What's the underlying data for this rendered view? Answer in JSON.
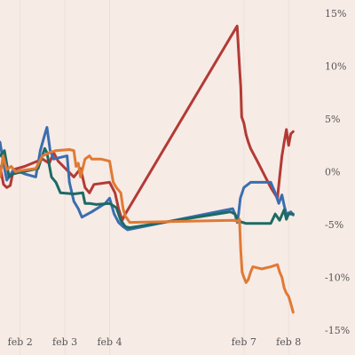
{
  "chart_data": {
    "type": "line",
    "title": "",
    "xlabel": "",
    "ylabel": "",
    "y_unit": "%",
    "ylim": [
      -15,
      15
    ],
    "x_axis": {
      "tick_labels": [
        "feb 2",
        "feb 3",
        "feb 4",
        "feb 7",
        "feb 8"
      ],
      "tick_days": [
        2,
        3,
        4,
        7,
        8
      ],
      "range_days": [
        1.55,
        8.65
      ]
    },
    "y_axis": {
      "ticks": [
        15,
        10,
        5,
        0,
        -5,
        -10,
        -15
      ],
      "tick_labels": [
        "15%",
        "10%",
        "5%",
        "0%",
        "-5%",
        "-10%",
        "-15%"
      ],
      "position": "right"
    },
    "grid": "vertical",
    "legend": "none",
    "series": [
      {
        "color": "#b33a34",
        "points": [
          [
            1.55,
            0.5
          ],
          [
            1.63,
            -1.2
          ],
          [
            1.7,
            -1.5
          ],
          [
            1.78,
            -1.3
          ],
          [
            1.85,
            0.2
          ],
          [
            2.1,
            0.5
          ],
          [
            2.5,
            1.2
          ],
          [
            2.65,
            0.8
          ],
          [
            2.75,
            1.8
          ],
          [
            2.85,
            1.0
          ],
          [
            3.2,
            -0.5
          ],
          [
            3.35,
            0.3
          ],
          [
            3.45,
            -1.5
          ],
          [
            3.55,
            -2.0
          ],
          [
            3.65,
            -1.2
          ],
          [
            4.0,
            -1.0
          ],
          [
            4.12,
            -2.0
          ],
          [
            4.2,
            -3.5
          ],
          [
            4.28,
            -4.6
          ],
          [
            4.35,
            -4.0
          ],
          [
            6.85,
            13.8
          ],
          [
            6.9,
            10.0
          ],
          [
            6.93,
            8.0
          ],
          [
            6.95,
            5.2
          ],
          [
            7.0,
            4.6
          ],
          [
            7.05,
            3.5
          ],
          [
            7.1,
            2.8
          ],
          [
            7.15,
            2.2
          ],
          [
            7.2,
            1.8
          ],
          [
            7.3,
            1.0
          ],
          [
            7.6,
            -1.5
          ],
          [
            7.75,
            -2.5
          ],
          [
            7.8,
            -0.5
          ],
          [
            7.85,
            1.5
          ],
          [
            7.9,
            2.8
          ],
          [
            7.95,
            4.0
          ],
          [
            8.0,
            2.5
          ],
          [
            8.05,
            3.6
          ],
          [
            8.1,
            3.8
          ]
        ]
      },
      {
        "color": "#3a6eb0",
        "points": [
          [
            1.55,
            2.8
          ],
          [
            1.62,
            1.0
          ],
          [
            1.7,
            -0.8
          ],
          [
            1.78,
            -0.3
          ],
          [
            1.85,
            0.2
          ],
          [
            2.1,
            -0.2
          ],
          [
            2.35,
            -0.5
          ],
          [
            2.45,
            2.0
          ],
          [
            2.55,
            3.5
          ],
          [
            2.6,
            4.2
          ],
          [
            2.67,
            2.0
          ],
          [
            2.75,
            1.2
          ],
          [
            3.05,
            1.5
          ],
          [
            3.1,
            -1.0
          ],
          [
            3.2,
            -2.8
          ],
          [
            3.3,
            -3.5
          ],
          [
            3.38,
            -4.3
          ],
          [
            3.6,
            -3.8
          ],
          [
            3.9,
            -3.0
          ],
          [
            4.0,
            -2.5
          ],
          [
            4.1,
            -4.0
          ],
          [
            4.2,
            -4.8
          ],
          [
            4.3,
            -5.2
          ],
          [
            4.4,
            -5.5
          ],
          [
            6.75,
            -3.5
          ],
          [
            6.8,
            -4.0
          ],
          [
            6.85,
            -4.8
          ],
          [
            6.88,
            -4.0
          ],
          [
            6.92,
            -2.5
          ],
          [
            6.96,
            -2.0
          ],
          [
            7.0,
            -1.5
          ],
          [
            7.15,
            -1.0
          ],
          [
            7.4,
            -1.0
          ],
          [
            7.6,
            -1.0
          ],
          [
            7.7,
            -2.0
          ],
          [
            7.78,
            -3.0
          ],
          [
            7.85,
            -2.2
          ],
          [
            7.9,
            -3.2
          ],
          [
            7.95,
            -4.0
          ],
          [
            8.05,
            -3.8
          ],
          [
            8.1,
            -4.1
          ]
        ]
      },
      {
        "color": "#1d6a64",
        "points": [
          [
            1.55,
            1.5
          ],
          [
            1.65,
            2.0
          ],
          [
            1.75,
            -0.5
          ],
          [
            1.85,
            -0.2
          ],
          [
            1.95,
            -0.1
          ],
          [
            2.4,
            0.3
          ],
          [
            2.55,
            2.2
          ],
          [
            2.6,
            1.8
          ],
          [
            2.7,
            -0.5
          ],
          [
            2.8,
            -1.0
          ],
          [
            2.9,
            -2.0
          ],
          [
            3.2,
            -2.1
          ],
          [
            3.4,
            -2.0
          ],
          [
            3.45,
            -3.0
          ],
          [
            3.55,
            -3.0
          ],
          [
            3.7,
            -3.1
          ],
          [
            4.0,
            -3.0
          ],
          [
            4.15,
            -3.4
          ],
          [
            4.25,
            -4.6
          ],
          [
            4.35,
            -5.2
          ],
          [
            4.45,
            -5.3
          ],
          [
            6.7,
            -3.8
          ],
          [
            6.8,
            -4.0
          ],
          [
            6.85,
            -4.4
          ],
          [
            6.9,
            -4.7
          ],
          [
            7.05,
            -4.9
          ],
          [
            7.3,
            -4.9
          ],
          [
            7.5,
            -4.9
          ],
          [
            7.6,
            -4.9
          ],
          [
            7.7,
            -4.0
          ],
          [
            7.8,
            -4.6
          ],
          [
            7.9,
            -3.6
          ],
          [
            7.95,
            -4.5
          ],
          [
            8.0,
            -4.0
          ],
          [
            8.1,
            -4.0
          ]
        ]
      },
      {
        "color": "#e07a34",
        "points": [
          [
            1.55,
            -0.5
          ],
          [
            1.62,
            1.5
          ],
          [
            1.7,
            0.2
          ],
          [
            1.8,
            0.5
          ],
          [
            1.9,
            0.0
          ],
          [
            2.0,
            0.1
          ],
          [
            2.35,
            0.3
          ],
          [
            2.5,
            1.5
          ],
          [
            2.65,
            1.8
          ],
          [
            2.8,
            2.0
          ],
          [
            3.1,
            2.1
          ],
          [
            3.2,
            2.0
          ],
          [
            3.25,
            0.5
          ],
          [
            3.3,
            0.8
          ],
          [
            3.35,
            -0.5
          ],
          [
            3.45,
            1.2
          ],
          [
            3.55,
            1.5
          ],
          [
            3.6,
            1.2
          ],
          [
            3.8,
            1.2
          ],
          [
            4.0,
            1.0
          ],
          [
            4.08,
            -1.0
          ],
          [
            4.15,
            -1.5
          ],
          [
            4.25,
            -2.0
          ],
          [
            4.3,
            -3.5
          ],
          [
            4.35,
            -4.2
          ],
          [
            4.45,
            -4.8
          ],
          [
            6.8,
            -4.6
          ],
          [
            6.85,
            -4.7
          ],
          [
            6.9,
            -4.5
          ],
          [
            6.93,
            -7.5
          ],
          [
            6.96,
            -9.5
          ],
          [
            7.0,
            -10.0
          ],
          [
            7.05,
            -10.5
          ],
          [
            7.1,
            -10.2
          ],
          [
            7.15,
            -9.5
          ],
          [
            7.2,
            -9.0
          ],
          [
            7.4,
            -9.2
          ],
          [
            7.6,
            -9.0
          ],
          [
            7.75,
            -8.8
          ],
          [
            7.8,
            -9.5
          ],
          [
            7.85,
            -10.0
          ],
          [
            7.9,
            -11.0
          ],
          [
            7.95,
            -11.5
          ],
          [
            8.0,
            -11.8
          ],
          [
            8.05,
            -12.5
          ],
          [
            8.1,
            -13.3
          ]
        ]
      }
    ]
  }
}
